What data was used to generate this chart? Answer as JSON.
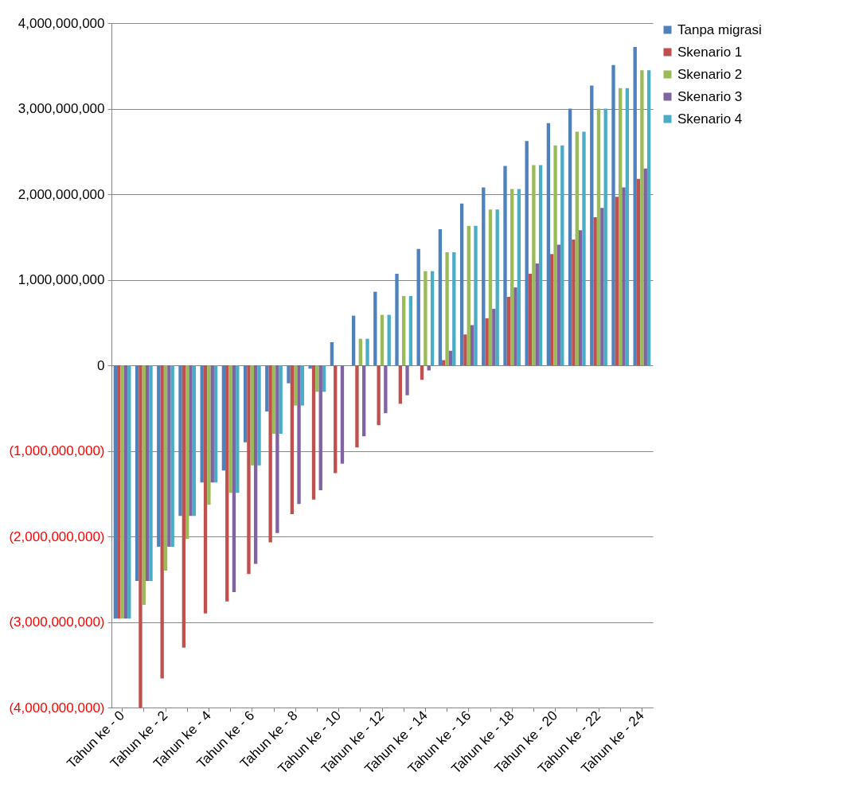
{
  "chart_data": {
    "type": "bar",
    "categories": [
      "Tahun ke - 0",
      null,
      "Tahun ke - 2",
      null,
      "Tahun ke - 4",
      null,
      "Tahun ke - 6",
      null,
      "Tahun ke - 8",
      null,
      "Tahun ke - 10",
      null,
      "Tahun ke - 12",
      null,
      "Tahun ke - 14",
      null,
      "Tahun ke - 16",
      null,
      "Tahun ke - 18",
      null,
      "Tahun ke - 20",
      null,
      "Tahun ke - 22",
      null,
      "Tahun ke - 24"
    ],
    "series": [
      {
        "name": "Tanpa migrasi",
        "color": "#4f81bd",
        "values": [
          -2960000000,
          -2520000000,
          -2120000000,
          -1760000000,
          -1370000000,
          -1230000000,
          -900000000,
          -540000000,
          -210000000,
          -40000000,
          270000000,
          580000000,
          860000000,
          1070000000,
          1360000000,
          1590000000,
          1890000000,
          2080000000,
          2330000000,
          2620000000,
          2830000000,
          3000000000,
          3270000000,
          3510000000,
          3720000000
        ]
      },
      {
        "name": "Skenario 1",
        "color": "#c0504d",
        "values": [
          -2960000000,
          -4000000000,
          -3660000000,
          -3300000000,
          -2900000000,
          -2760000000,
          -2440000000,
          -2070000000,
          -1740000000,
          -1570000000,
          -1260000000,
          -960000000,
          -700000000,
          -450000000,
          -170000000,
          60000000,
          360000000,
          550000000,
          800000000,
          1070000000,
          1300000000,
          1470000000,
          1730000000,
          1970000000,
          2180000000
        ]
      },
      {
        "name": "Skenario 2",
        "color": "#9bbb59",
        "values": [
          -2960000000,
          -2800000000,
          -2400000000,
          -2030000000,
          -1630000000,
          -1490000000,
          -1170000000,
          -800000000,
          -470000000,
          -310000000,
          0,
          310000000,
          590000000,
          810000000,
          1100000000,
          1320000000,
          1630000000,
          1820000000,
          2060000000,
          2340000000,
          2570000000,
          2730000000,
          3000000000,
          3240000000,
          3450000000
        ]
      },
      {
        "name": "Skenario 3",
        "color": "#8064a2",
        "values": [
          -2960000000,
          -2520000000,
          -2120000000,
          -1760000000,
          -1370000000,
          -2650000000,
          -2320000000,
          -1960000000,
          -1620000000,
          -1460000000,
          -1150000000,
          -830000000,
          -560000000,
          -350000000,
          -60000000,
          170000000,
          470000000,
          660000000,
          910000000,
          1190000000,
          1410000000,
          1580000000,
          1840000000,
          2080000000,
          2300000000
        ]
      },
      {
        "name": "Skenario 4",
        "color": "#4bacc6",
        "values": [
          -2960000000,
          -2520000000,
          -2120000000,
          -1760000000,
          -1370000000,
          -1490000000,
          -1170000000,
          -800000000,
          -470000000,
          -310000000,
          0,
          310000000,
          590000000,
          810000000,
          1100000000,
          1320000000,
          1630000000,
          1820000000,
          2060000000,
          2340000000,
          2570000000,
          2730000000,
          3000000000,
          3240000000,
          3450000000
        ]
      }
    ],
    "ylim": [
      -4000000000,
      4000000000
    ],
    "yticks": [
      {
        "value": -4000000000,
        "label": "(4,000,000,000)"
      },
      {
        "value": -3000000000,
        "label": "(3,000,000,000)"
      },
      {
        "value": -2000000000,
        "label": "(2,000,000,000)"
      },
      {
        "value": -1000000000,
        "label": "(1,000,000,000)"
      },
      {
        "value": 0,
        "label": "0"
      },
      {
        "value": 1000000000,
        "label": "1,000,000,000"
      },
      {
        "value": 2000000000,
        "label": "2,000,000,000"
      },
      {
        "value": 3000000000,
        "label": "3,000,000,000"
      },
      {
        "value": 4000000000,
        "label": "4,000,000,000"
      }
    ],
    "grid": "y",
    "legend": "right"
  }
}
